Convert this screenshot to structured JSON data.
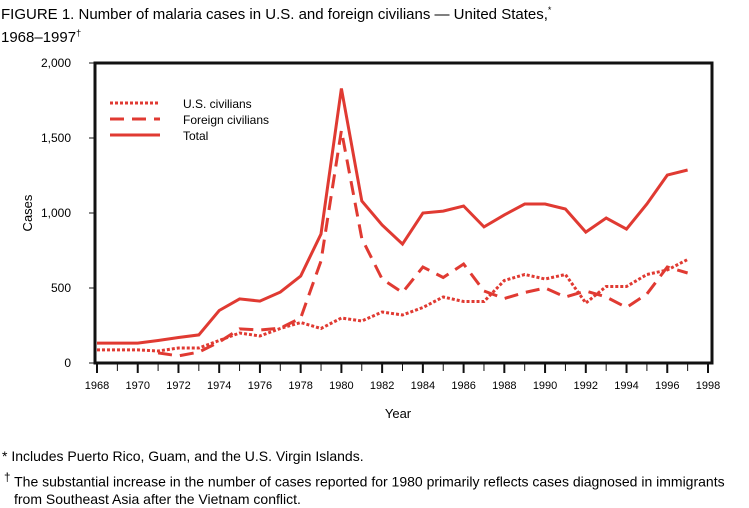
{
  "title": "FIGURE 1. Number of malaria cases in U.S. and foreign civilians — United States,",
  "title_mark": "*",
  "title_years": "1968–1997",
  "title_years_mark": "†",
  "footnotes": [
    {
      "mark": "*",
      "text": "Includes Puerto Rico, Guam, and the U.S. Virgin Islands."
    },
    {
      "mark": "†",
      "text": "The substantial increase in the number of cases reported for 1980 primarily reflects cases diagnosed in immigrants from Southeast Asia after the Vietnam conflict."
    }
  ],
  "chart_data": {
    "type": "line",
    "xlabel": "Year",
    "ylabel": "Cases",
    "xlim": [
      1968,
      1998
    ],
    "ylim": [
      0,
      2000
    ],
    "x_ticks": [
      "1968",
      "1970",
      "1972",
      "1974",
      "1976",
      "1978",
      "1980",
      "1982",
      "1984",
      "1986",
      "1988",
      "1990",
      "1992",
      "1994",
      "1996",
      "1998"
    ],
    "y_ticks": [
      "0",
      "500",
      "1,000",
      "1,500",
      "2,000"
    ],
    "legend_position": "top-left",
    "color": "#e03a32",
    "x": [
      1968,
      1969,
      1970,
      1971,
      1972,
      1973,
      1974,
      1975,
      1976,
      1977,
      1978,
      1979,
      1980,
      1981,
      1982,
      1983,
      1984,
      1985,
      1986,
      1987,
      1988,
      1989,
      1990,
      1991,
      1992,
      1993,
      1994,
      1995,
      1996,
      1997
    ],
    "series": [
      {
        "name": "U.S. civilians",
        "style": "dotted",
        "values": [
          87,
          87,
          87,
          80,
          100,
          100,
          150,
          200,
          180,
          230,
          270,
          230,
          300,
          280,
          340,
          320,
          370,
          440,
          410,
          410,
          550,
          590,
          560,
          590,
          400,
          510,
          510,
          590,
          620,
          690
        ]
      },
      {
        "name": "Foreign civilians",
        "style": "dashed",
        "values": [
          null,
          null,
          null,
          67,
          47,
          73,
          140,
          227,
          220,
          233,
          300,
          680,
          1550,
          830,
          560,
          470,
          640,
          570,
          660,
          480,
          430,
          470,
          500,
          440,
          480,
          440,
          370,
          460,
          640,
          600
        ]
      },
      {
        "name": "Total",
        "style": "solid",
        "values": [
          133,
          133,
          133,
          150,
          170,
          187,
          350,
          427,
          413,
          473,
          580,
          860,
          1830,
          1080,
          920,
          793,
          1000,
          1013,
          1047,
          907,
          987,
          1060,
          1060,
          1027,
          873,
          967,
          893,
          1060,
          1253,
          1287
        ]
      }
    ]
  }
}
